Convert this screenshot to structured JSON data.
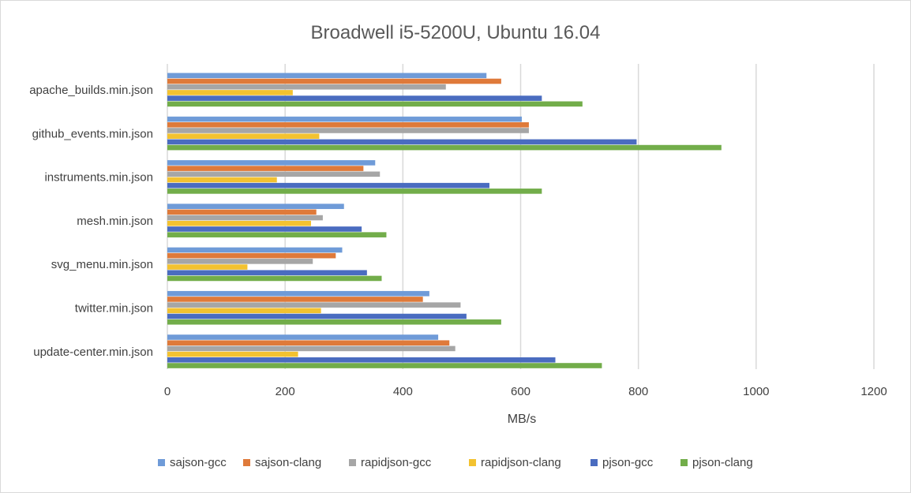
{
  "chart_data": {
    "type": "bar",
    "orientation": "horizontal",
    "title": "Broadwell i5-5200U, Ubuntu 16.04",
    "xlabel": "MB/s",
    "ylabel": "",
    "xlim": [
      0,
      1200
    ],
    "ticks": [
      0,
      200,
      400,
      600,
      800,
      1000,
      1200
    ],
    "grid": true,
    "legend_position": "bottom",
    "categories": [
      "apache_builds.min.json",
      "github_events.min.json",
      "instruments.min.json",
      "mesh.min.json",
      "svg_menu.min.json",
      "twitter.min.json",
      "update-center.min.json"
    ],
    "series": [
      {
        "name": "sajson-gcc",
        "color": "#6f9bd8",
        "values": [
          542,
          602,
          353,
          300,
          297,
          445,
          460
        ]
      },
      {
        "name": "sajson-clang",
        "color": "#df7a3a",
        "values": [
          567,
          614,
          333,
          253,
          286,
          434,
          479
        ]
      },
      {
        "name": "rapidjson-gcc",
        "color": "#a6a6a6",
        "values": [
          473,
          614,
          361,
          264,
          247,
          498,
          489
        ]
      },
      {
        "name": "rapidjson-clang",
        "color": "#f3c230",
        "values": [
          213,
          258,
          186,
          244,
          136,
          261,
          222
        ]
      },
      {
        "name": "pjson-gcc",
        "color": "#4a6cc0",
        "values": [
          636,
          797,
          547,
          330,
          339,
          508,
          659
        ]
      },
      {
        "name": "pjson-clang",
        "color": "#72ad4a",
        "values": [
          705,
          941,
          636,
          372,
          364,
          567,
          738
        ]
      }
    ]
  }
}
